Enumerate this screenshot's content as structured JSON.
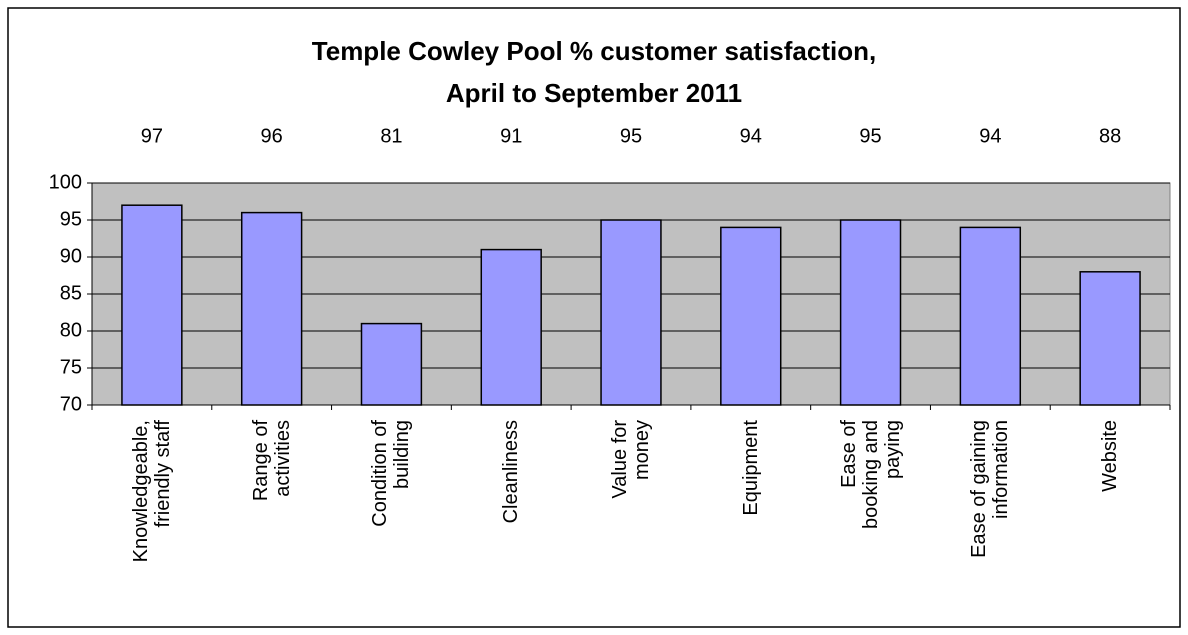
{
  "chart_data": {
    "type": "bar",
    "title": "Temple Cowley Pool % customer satisfaction,\nApril to September 2011",
    "categories": [
      "Knowledgeable,\nfriendly staff",
      "Range of\nactivities",
      "Condition of\nbuilding",
      "Cleanliness",
      "Value for\nmoney",
      "Equipment",
      "Ease of\nbooking and\npaying",
      "Ease of gaining\ninformation",
      "Website"
    ],
    "values": [
      97,
      96,
      81,
      91,
      95,
      94,
      95,
      94,
      88
    ],
    "color": "#9999ff",
    "ylim": [
      70,
      100
    ],
    "yticks": [
      70,
      75,
      80,
      85,
      90,
      95,
      100
    ],
    "grid": true
  }
}
